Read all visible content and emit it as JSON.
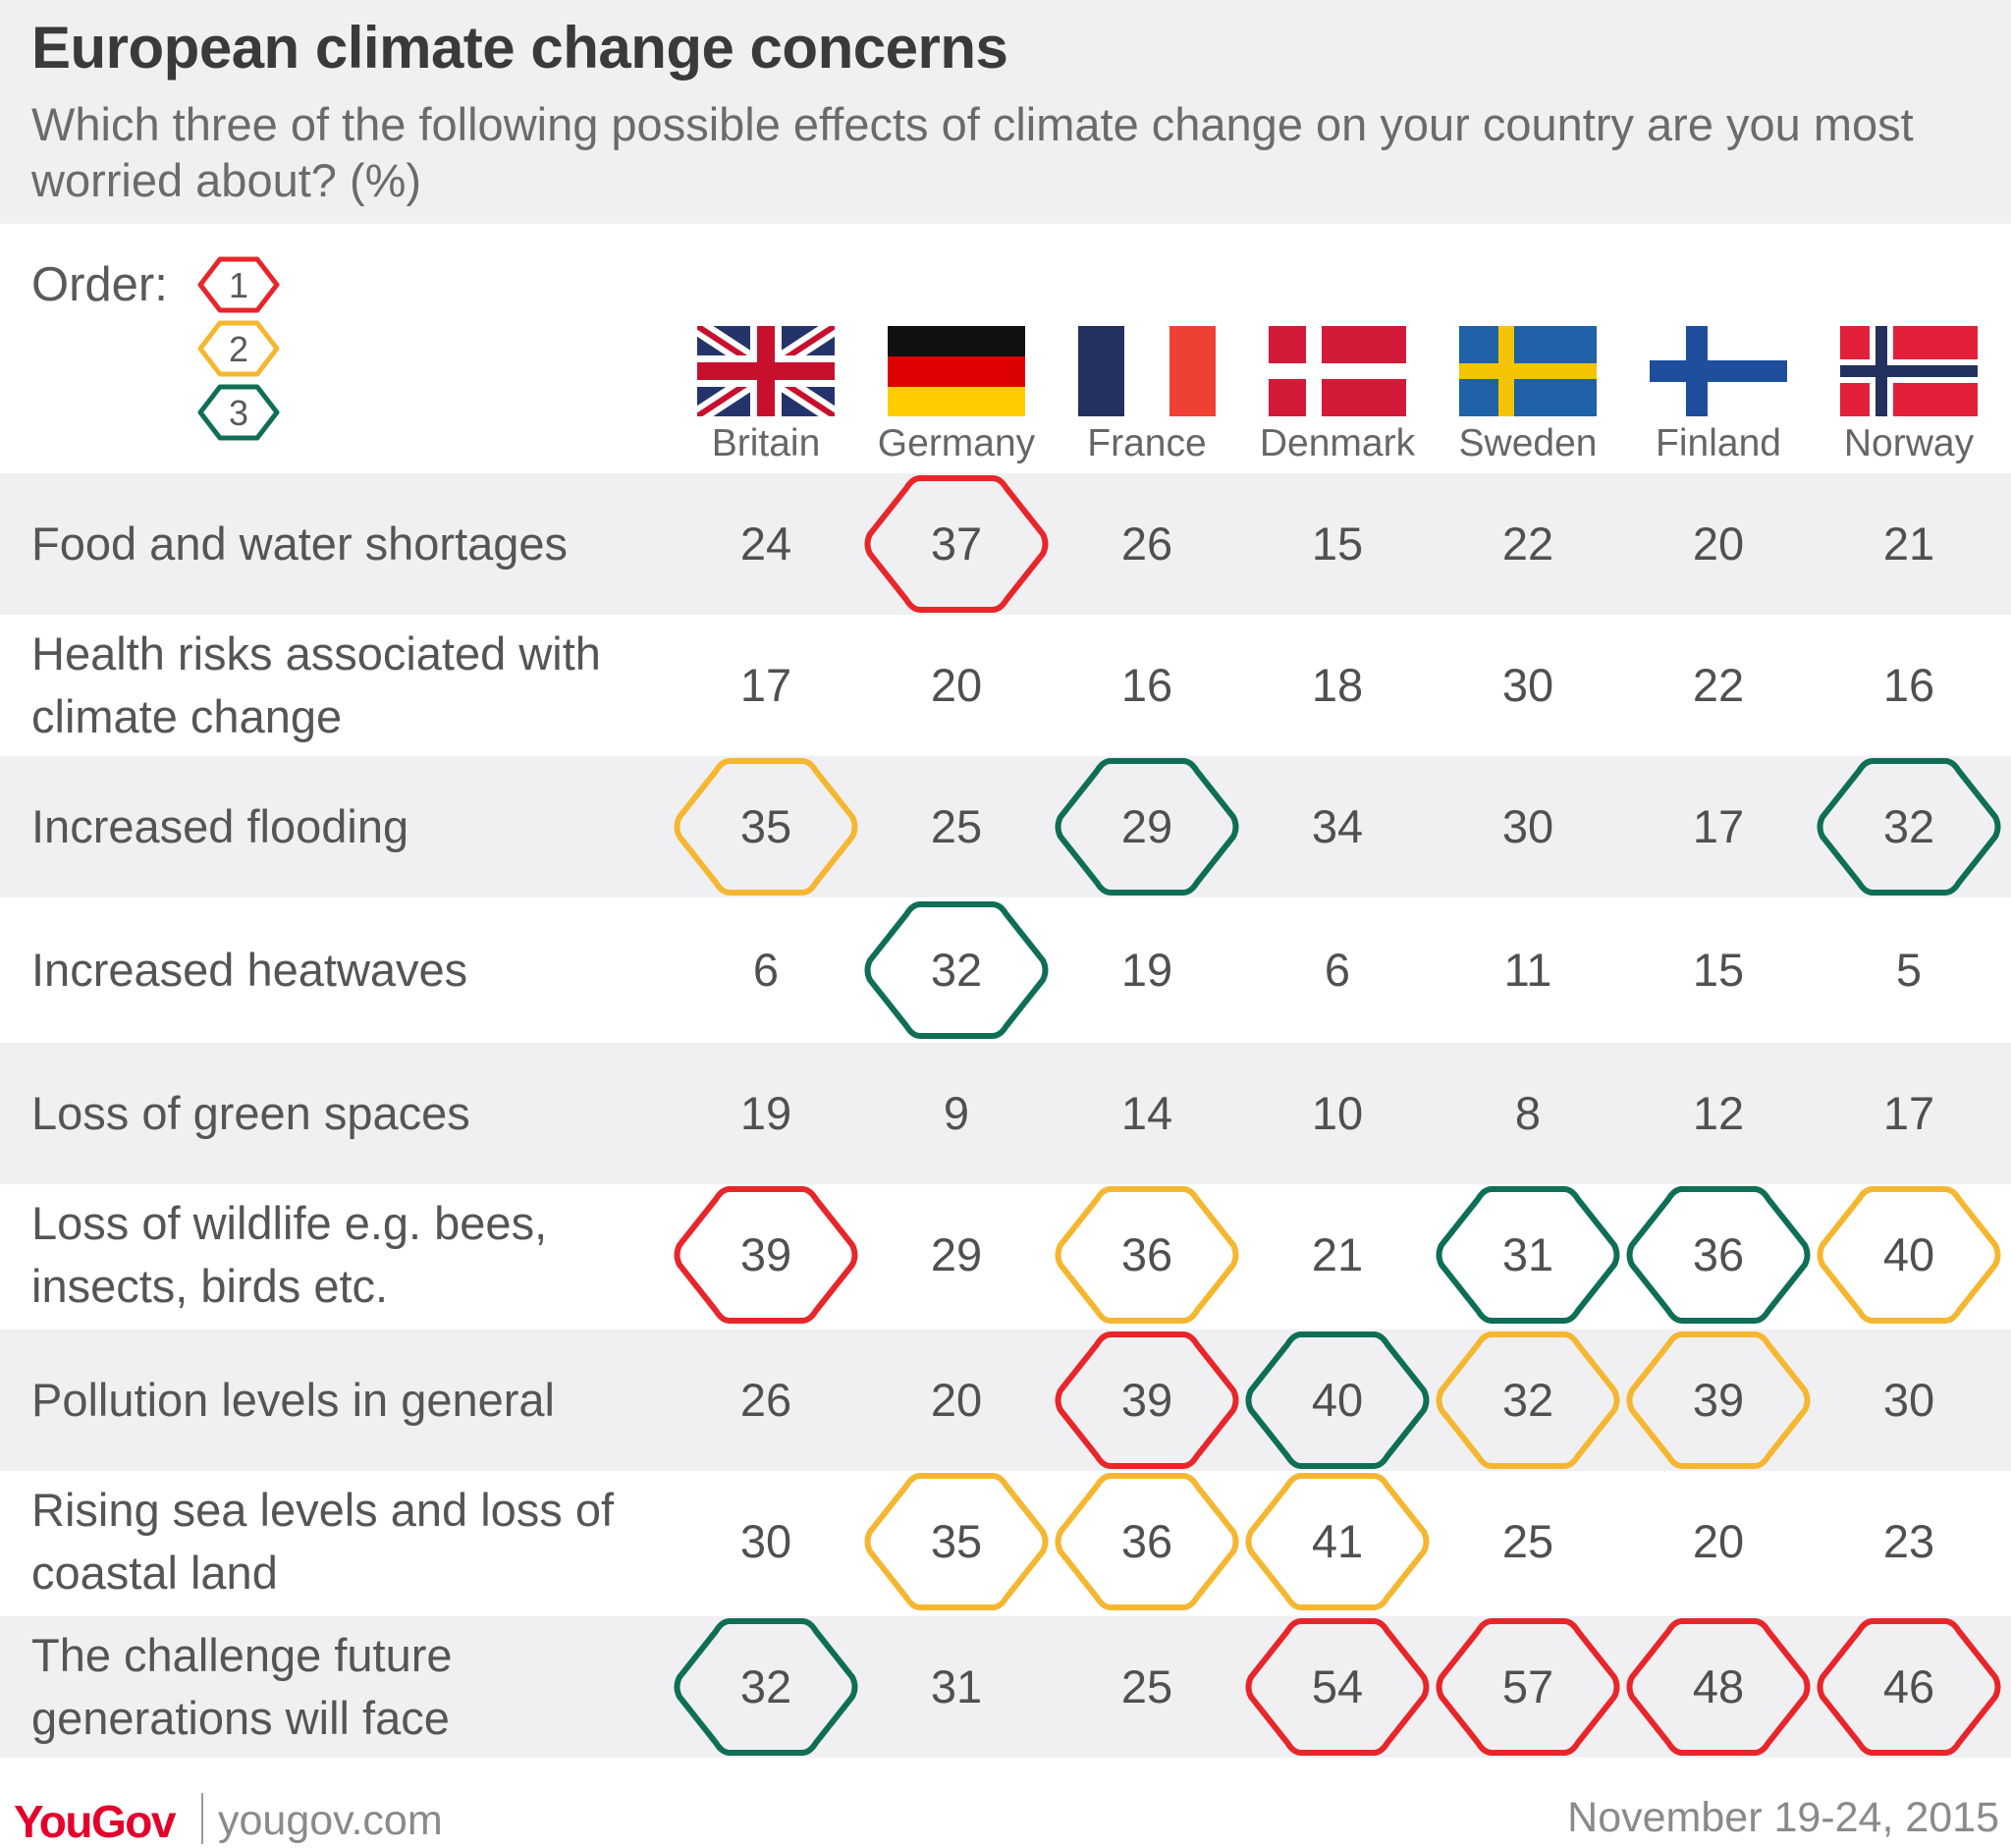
{
  "chart_data": {
    "type": "table",
    "title": "European climate change concerns",
    "subtitle": "Which three of the following possible effects of climate change on your country are you most worried about? (%)",
    "legend": {
      "label": "Order:",
      "ranks": [
        {
          "rank": "1",
          "color": "#e8262a"
        },
        {
          "rank": "2",
          "color": "#f5b731"
        },
        {
          "rank": "3",
          "color": "#0e6f56"
        }
      ]
    },
    "columns": [
      {
        "name": "Britain",
        "flag": "gb-flag-icon"
      },
      {
        "name": "Germany",
        "flag": "de-flag-icon"
      },
      {
        "name": "France",
        "flag": "fr-flag-icon"
      },
      {
        "name": "Denmark",
        "flag": "dk-flag-icon"
      },
      {
        "name": "Sweden",
        "flag": "se-flag-icon"
      },
      {
        "name": "Finland",
        "flag": "fi-flag-icon"
      },
      {
        "name": "Norway",
        "flag": "no-flag-icon"
      }
    ],
    "rows": [
      {
        "label": "Food and water shortages",
        "values": [
          24,
          37,
          26,
          15,
          22,
          20,
          21
        ],
        "ranks": [
          0,
          1,
          0,
          0,
          0,
          0,
          0
        ]
      },
      {
        "label": "Health risks associated with climate change",
        "values": [
          17,
          20,
          16,
          18,
          30,
          22,
          16
        ],
        "ranks": [
          0,
          0,
          0,
          0,
          0,
          0,
          0
        ]
      },
      {
        "label": "Increased flooding",
        "values": [
          35,
          25,
          29,
          34,
          30,
          17,
          32
        ],
        "ranks": [
          2,
          0,
          3,
          0,
          0,
          0,
          3
        ]
      },
      {
        "label": "Increased heatwaves",
        "values": [
          6,
          32,
          19,
          6,
          11,
          15,
          5
        ],
        "ranks": [
          0,
          3,
          0,
          0,
          0,
          0,
          0
        ]
      },
      {
        "label": "Loss of green spaces",
        "values": [
          19,
          9,
          14,
          10,
          8,
          12,
          17
        ],
        "ranks": [
          0,
          0,
          0,
          0,
          0,
          0,
          0
        ]
      },
      {
        "label": "Loss of wildlife e.g. bees, insects, birds etc.",
        "values": [
          39,
          29,
          36,
          21,
          31,
          36,
          40
        ],
        "ranks": [
          1,
          0,
          2,
          0,
          3,
          3,
          2
        ]
      },
      {
        "label": "Pollution levels in general",
        "values": [
          26,
          20,
          39,
          40,
          32,
          39,
          30
        ],
        "ranks": [
          0,
          0,
          1,
          3,
          2,
          2,
          0
        ]
      },
      {
        "label": "Rising sea levels and loss of coastal land",
        "values": [
          30,
          35,
          36,
          41,
          25,
          20,
          23
        ],
        "ranks": [
          0,
          2,
          2,
          2,
          0,
          0,
          0
        ]
      },
      {
        "label": "The challenge future generations will face",
        "values": [
          32,
          31,
          25,
          54,
          57,
          48,
          46
        ],
        "ranks": [
          3,
          0,
          0,
          1,
          1,
          1,
          1
        ]
      }
    ]
  },
  "footer": {
    "logo": "YouGov",
    "site": "yougov.com",
    "date": "November 19-24, 2015"
  }
}
